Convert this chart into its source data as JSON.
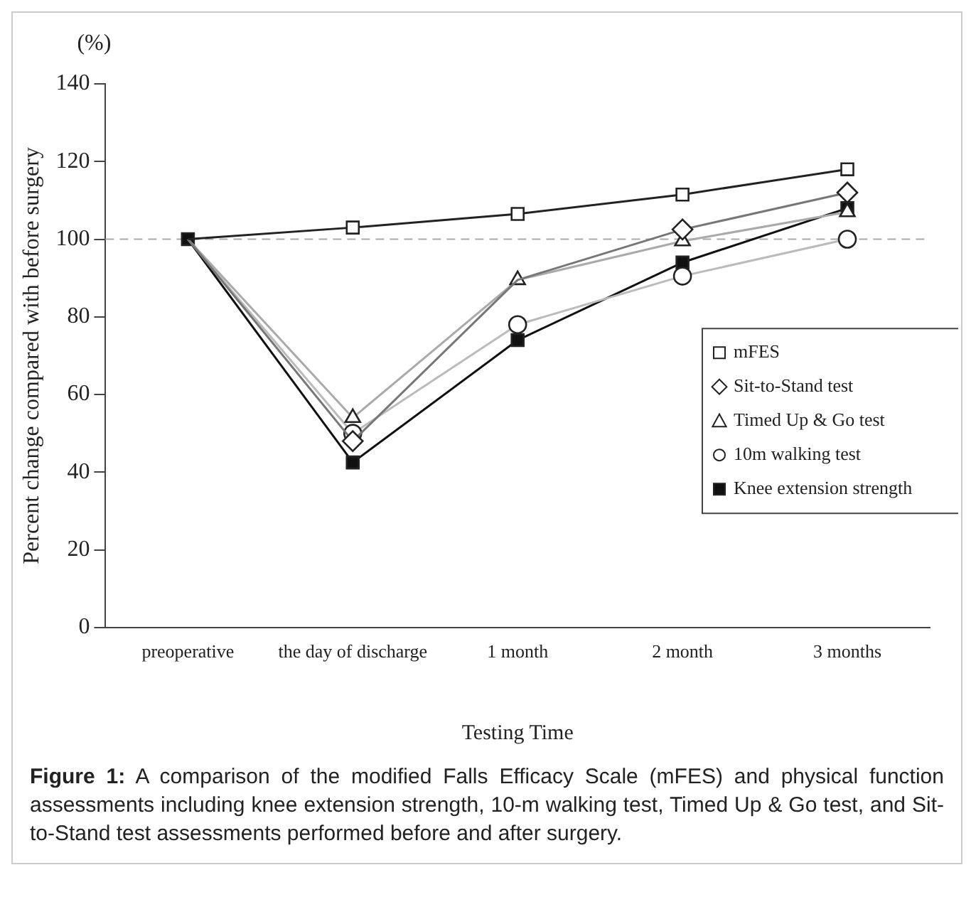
{
  "chart_data": {
    "type": "line",
    "xlabel": "Testing Time",
    "ylabel": "Percent change compared with before surgery",
    "categories": [
      "preoperative",
      "the day of discharge",
      "1 month",
      "2 month",
      "3 months"
    ],
    "series": [
      {
        "name": "mFES",
        "color": "#222222",
        "colors": [
          "#ffffff",
          "#ffffff",
          "#ffffff",
          "#ffffff",
          "#ffffff"
        ],
        "marker": "square",
        "values": [
          100,
          103,
          106.5,
          111.5,
          118
        ]
      },
      {
        "name": "Sit-to-Stand test",
        "color": "#777777",
        "colors": [
          "#ffffff",
          "#ffffff",
          "#ffffff",
          "#ffffff",
          "#ffffff"
        ],
        "marker": "diamond",
        "values": [
          100,
          48,
          89.5,
          102.5,
          112
        ]
      },
      {
        "name": "Timed Up & Go test",
        "color": "#aaaaaa",
        "colors": [
          "#ffffff",
          "#ffffff",
          "#ffffff",
          "#ffffff",
          "#ffffff"
        ],
        "marker": "triangle",
        "values": [
          100,
          54,
          89.5,
          99.5,
          107
        ]
      },
      {
        "name": "10m walking test",
        "color": "#bbbbbb",
        "colors": [
          "#ffffff",
          "#ffffff",
          "#ffffff",
          "#ffffff",
          "#ffffff"
        ],
        "marker": "circle",
        "values": [
          100,
          50,
          78,
          90.5,
          100
        ]
      },
      {
        "name": "Knee extension strength",
        "color": "#111111",
        "marker": "square",
        "values": [
          100,
          42.5,
          74,
          94,
          108
        ]
      }
    ],
    "ylim": [
      0,
      140
    ],
    "yticks": [
      0,
      20,
      40,
      60,
      80,
      100,
      120,
      140
    ],
    "grid": false,
    "legend": "right",
    "ref_lines": [
      {
        "axis": "y",
        "value": 100,
        "color": "#aaaaaa",
        "line_style": "dashed"
      }
    ],
    "annotations": [
      "(%)",
      "Figure 1: A comparison of the modified Falls Efficacy Scale (mFES) and physical function assessments including knee extension strength, 10-m walking test, Timed Up & Go test, and Sit-to-Stand test assessments performed before and after surgery."
    ]
  }
}
